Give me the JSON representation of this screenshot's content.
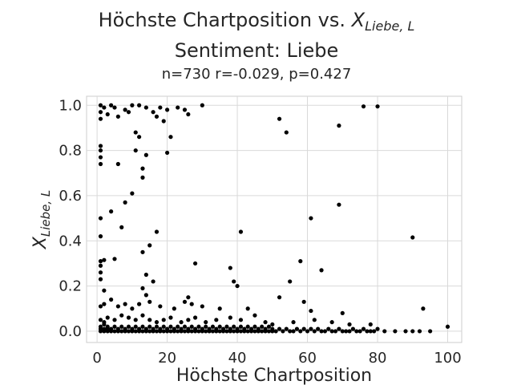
{
  "chart_data": {
    "type": "scatter",
    "title_line1_prefix": "Höchste Chartposition vs. ",
    "title_symbol": "X",
    "title_subscript": "Liebe, L",
    "title_line2": "Sentiment: Liebe",
    "subtitle": "n=730 r=-0.029, p=0.427",
    "xlabel": "Höchste Chartposition",
    "ylabel_symbol": "X",
    "ylabel_subscript": "Liebe, L",
    "xlim": [
      -3,
      104
    ],
    "ylim": [
      -0.05,
      1.04
    ],
    "xticks": [
      0,
      20,
      40,
      60,
      80,
      100
    ],
    "xtick_labels": [
      "0",
      "20",
      "40",
      "60",
      "80",
      "100"
    ],
    "yticks": [
      0.0,
      0.2,
      0.4,
      0.6,
      0.8,
      1.0
    ],
    "ytick_labels": [
      "0.0",
      "0.2",
      "0.4",
      "0.6",
      "0.8",
      "1.0"
    ],
    "grid": true,
    "point_color": "#000000",
    "series": [
      {
        "points": [
          [
            1,
            1.0
          ],
          [
            2,
            0.99
          ],
          [
            4,
            1.0
          ],
          [
            5,
            0.99
          ],
          [
            8,
            0.98
          ],
          [
            10,
            1.0
          ],
          [
            12,
            1.0
          ],
          [
            14,
            0.99
          ],
          [
            18,
            0.99
          ],
          [
            20,
            0.98
          ],
          [
            23,
            0.99
          ],
          [
            25,
            0.98
          ],
          [
            30,
            1.0
          ],
          [
            76,
            0.995
          ],
          [
            80,
            0.995
          ],
          [
            1,
            0.97
          ],
          [
            3,
            0.96
          ],
          [
            6,
            0.95
          ],
          [
            9,
            0.97
          ],
          [
            16,
            0.97
          ],
          [
            26,
            0.96
          ],
          [
            1,
            0.94
          ],
          [
            17,
            0.95
          ],
          [
            19,
            0.93
          ],
          [
            52,
            0.94
          ],
          [
            54,
            0.88
          ],
          [
            69,
            0.91
          ],
          [
            11,
            0.88
          ],
          [
            12,
            0.86
          ],
          [
            21,
            0.86
          ],
          [
            1,
            0.82
          ],
          [
            1,
            0.8
          ],
          [
            11,
            0.8
          ],
          [
            14,
            0.78
          ],
          [
            20,
            0.79
          ],
          [
            1,
            0.77
          ],
          [
            1,
            0.74
          ],
          [
            6,
            0.74
          ],
          [
            13,
            0.72
          ],
          [
            13,
            0.68
          ],
          [
            10,
            0.61
          ],
          [
            8,
            0.57
          ],
          [
            4,
            0.53
          ],
          [
            1,
            0.5
          ],
          [
            7,
            0.46
          ],
          [
            17,
            0.44
          ],
          [
            41,
            0.44
          ],
          [
            1,
            0.42
          ],
          [
            90,
            0.415
          ],
          [
            15,
            0.38
          ],
          [
            13,
            0.35
          ],
          [
            61,
            0.5
          ],
          [
            69,
            0.56
          ],
          [
            1,
            0.31
          ],
          [
            2,
            0.315
          ],
          [
            5,
            0.32
          ],
          [
            1,
            0.29
          ],
          [
            28,
            0.3
          ],
          [
            38,
            0.28
          ],
          [
            58,
            0.31
          ],
          [
            64,
            0.27
          ],
          [
            1,
            0.26
          ],
          [
            14,
            0.25
          ],
          [
            1,
            0.23
          ],
          [
            16,
            0.22
          ],
          [
            39,
            0.22
          ],
          [
            55,
            0.22
          ],
          [
            40,
            0.2
          ],
          [
            2,
            0.18
          ],
          [
            13,
            0.19
          ],
          [
            4,
            0.14
          ],
          [
            14,
            0.16
          ],
          [
            26,
            0.15
          ],
          [
            1,
            0.11
          ],
          [
            2,
            0.12
          ],
          [
            6,
            0.11
          ],
          [
            8,
            0.12
          ],
          [
            10,
            0.1
          ],
          [
            12,
            0.12
          ],
          [
            15,
            0.13
          ],
          [
            18,
            0.11
          ],
          [
            22,
            0.1
          ],
          [
            25,
            0.13
          ],
          [
            27,
            0.12
          ],
          [
            30,
            0.11
          ],
          [
            35,
            0.1
          ],
          [
            43,
            0.1
          ],
          [
            52,
            0.15
          ],
          [
            59,
            0.13
          ],
          [
            61,
            0.09
          ],
          [
            70,
            0.08
          ],
          [
            93,
            0.1
          ],
          [
            1,
            0.05
          ],
          [
            2,
            0.04
          ],
          [
            3,
            0.06
          ],
          [
            5,
            0.05
          ],
          [
            7,
            0.07
          ],
          [
            9,
            0.06
          ],
          [
            11,
            0.05
          ],
          [
            13,
            0.07
          ],
          [
            15,
            0.05
          ],
          [
            17,
            0.04
          ],
          [
            19,
            0.05
          ],
          [
            21,
            0.06
          ],
          [
            24,
            0.04
          ],
          [
            26,
            0.05
          ],
          [
            28,
            0.06
          ],
          [
            31,
            0.04
          ],
          [
            34,
            0.05
          ],
          [
            38,
            0.06
          ],
          [
            41,
            0.05
          ],
          [
            45,
            0.07
          ],
          [
            48,
            0.04
          ],
          [
            50,
            0.03
          ],
          [
            56,
            0.04
          ],
          [
            62,
            0.05
          ],
          [
            67,
            0.04
          ],
          [
            72,
            0.03
          ],
          [
            78,
            0.03
          ],
          [
            1,
            0.0
          ],
          [
            1,
            0.01
          ],
          [
            1,
            0.02
          ],
          [
            2,
            0.0
          ],
          [
            2,
            0.01
          ],
          [
            2,
            0.03
          ],
          [
            3,
            0.0
          ],
          [
            3,
            0.01
          ],
          [
            3,
            0.02
          ],
          [
            4,
            0.0
          ],
          [
            4,
            0.01
          ],
          [
            5,
            0.0
          ],
          [
            5,
            0.02
          ],
          [
            6,
            0.0
          ],
          [
            6,
            0.01
          ],
          [
            7,
            0.0
          ],
          [
            7,
            0.02
          ],
          [
            8,
            0.0
          ],
          [
            8,
            0.01
          ],
          [
            9,
            0.0
          ],
          [
            9,
            0.02
          ],
          [
            10,
            0.0
          ],
          [
            10,
            0.01
          ],
          [
            11,
            0.0
          ],
          [
            11,
            0.02
          ],
          [
            12,
            0.0
          ],
          [
            12,
            0.01
          ],
          [
            13,
            0.0
          ],
          [
            13,
            0.02
          ],
          [
            14,
            0.0
          ],
          [
            14,
            0.01
          ],
          [
            15,
            0.0
          ],
          [
            15,
            0.02
          ],
          [
            16,
            0.0
          ],
          [
            16,
            0.01
          ],
          [
            17,
            0.0
          ],
          [
            17,
            0.02
          ],
          [
            18,
            0.0
          ],
          [
            18,
            0.01
          ],
          [
            19,
            0.0
          ],
          [
            19,
            0.02
          ],
          [
            20,
            0.0
          ],
          [
            20,
            0.01
          ],
          [
            21,
            0.0
          ],
          [
            21,
            0.02
          ],
          [
            22,
            0.0
          ],
          [
            22,
            0.01
          ],
          [
            23,
            0.0
          ],
          [
            23,
            0.02
          ],
          [
            24,
            0.0
          ],
          [
            24,
            0.01
          ],
          [
            25,
            0.0
          ],
          [
            25,
            0.02
          ],
          [
            26,
            0.0
          ],
          [
            26,
            0.01
          ],
          [
            27,
            0.0
          ],
          [
            27,
            0.02
          ],
          [
            28,
            0.0
          ],
          [
            28,
            0.01
          ],
          [
            29,
            0.0
          ],
          [
            29,
            0.02
          ],
          [
            30,
            0.0
          ],
          [
            30,
            0.01
          ],
          [
            31,
            0.0
          ],
          [
            31,
            0.02
          ],
          [
            32,
            0.0
          ],
          [
            32,
            0.01
          ],
          [
            33,
            0.0
          ],
          [
            33,
            0.02
          ],
          [
            34,
            0.0
          ],
          [
            34,
            0.01
          ],
          [
            35,
            0.0
          ],
          [
            35,
            0.02
          ],
          [
            36,
            0.0
          ],
          [
            36,
            0.01
          ],
          [
            37,
            0.0
          ],
          [
            37,
            0.02
          ],
          [
            38,
            0.0
          ],
          [
            38,
            0.01
          ],
          [
            39,
            0.0
          ],
          [
            39,
            0.02
          ],
          [
            40,
            0.0
          ],
          [
            40,
            0.01
          ],
          [
            41,
            0.0
          ],
          [
            41,
            0.02
          ],
          [
            42,
            0.0
          ],
          [
            42,
            0.01
          ],
          [
            43,
            0.0
          ],
          [
            43,
            0.02
          ],
          [
            44,
            0.0
          ],
          [
            44,
            0.01
          ],
          [
            45,
            0.0
          ],
          [
            45,
            0.02
          ],
          [
            46,
            0.0
          ],
          [
            46,
            0.01
          ],
          [
            47,
            0.0
          ],
          [
            47,
            0.02
          ],
          [
            48,
            0.0
          ],
          [
            48,
            0.01
          ],
          [
            49,
            0.0
          ],
          [
            49,
            0.02
          ],
          [
            50,
            0.0
          ],
          [
            50,
            0.01
          ],
          [
            51,
            0.0
          ],
          [
            52,
            0.01
          ],
          [
            53,
            0.0
          ],
          [
            54,
            0.01
          ],
          [
            55,
            0.0
          ],
          [
            56,
            0.0
          ],
          [
            57,
            0.01
          ],
          [
            58,
            0.0
          ],
          [
            59,
            0.01
          ],
          [
            60,
            0.0
          ],
          [
            61,
            0.01
          ],
          [
            62,
            0.0
          ],
          [
            63,
            0.01
          ],
          [
            64,
            0.0
          ],
          [
            65,
            0.0
          ],
          [
            66,
            0.01
          ],
          [
            67,
            0.0
          ],
          [
            68,
            0.0
          ],
          [
            69,
            0.01
          ],
          [
            70,
            0.0
          ],
          [
            71,
            0.0
          ],
          [
            72,
            0.0
          ],
          [
            73,
            0.01
          ],
          [
            74,
            0.0
          ],
          [
            75,
            0.0
          ],
          [
            76,
            0.01
          ],
          [
            77,
            0.0
          ],
          [
            78,
            0.0
          ],
          [
            79,
            0.0
          ],
          [
            80,
            0.01
          ],
          [
            82,
            0.0
          ],
          [
            85,
            0.0
          ],
          [
            88,
            0.0
          ],
          [
            90,
            0.0
          ],
          [
            92,
            0.0
          ],
          [
            95,
            0.0
          ],
          [
            100,
            0.02
          ]
        ]
      }
    ]
  }
}
